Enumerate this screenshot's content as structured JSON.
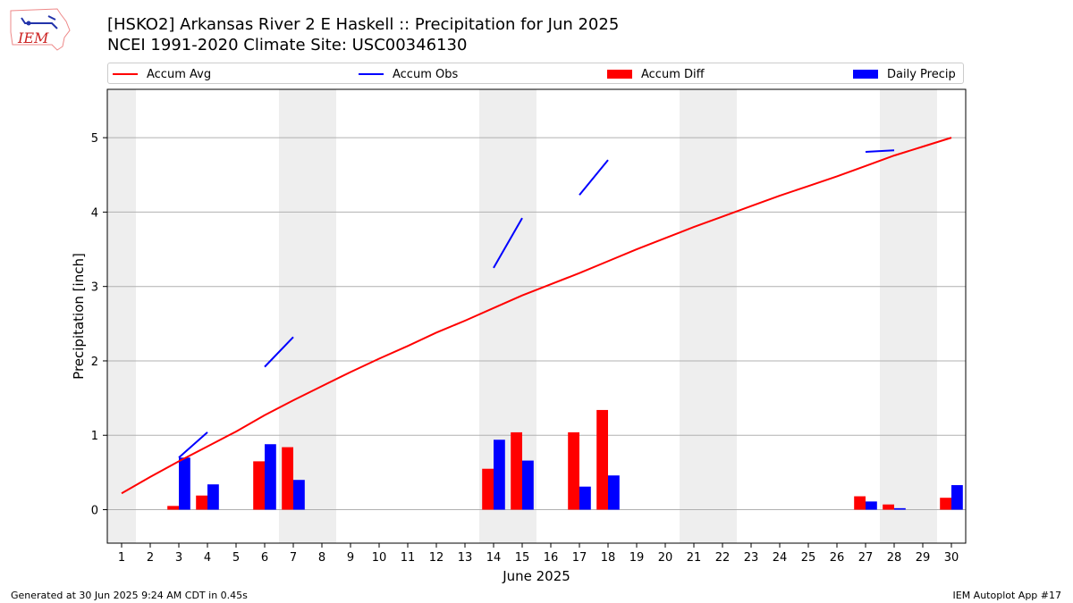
{
  "header": {
    "logo_text": "IEM",
    "title_line1": "[HSKO2] Arkansas River 2 E Haskell :: Precipitation for Jun 2025",
    "title_line2": "NCEI 1991-2020 Climate Site: USC00346130"
  },
  "legend": {
    "position": "top",
    "items": [
      {
        "label": "Accum Avg",
        "kind": "line",
        "color": "#ff0000"
      },
      {
        "label": "Accum Obs",
        "kind": "line",
        "color": "#0000ff"
      },
      {
        "label": "Accum Diff",
        "kind": "box",
        "color": "#ff0000"
      },
      {
        "label": "Daily Precip",
        "kind": "box",
        "color": "#0000ff"
      }
    ]
  },
  "footer": {
    "left": "Generated at 30 Jun 2025 9:24 AM CDT in 0.45s",
    "right": "IEM Autoplot App #17"
  },
  "chart_data": {
    "type": "bar",
    "xlabel": "June 2025",
    "ylabel": "Precipitation [inch]",
    "xlim": [
      0.5,
      30.5
    ],
    "ylim": [
      -0.45,
      5.65
    ],
    "yticks": [
      0,
      1,
      2,
      3,
      4,
      5
    ],
    "grid": "horizontal",
    "weekend_shading": [
      1,
      7,
      8,
      14,
      15,
      21,
      22,
      28,
      29
    ],
    "shade_color": "#eeeeee",
    "days": [
      1,
      2,
      3,
      4,
      5,
      6,
      7,
      8,
      9,
      10,
      11,
      12,
      13,
      14,
      15,
      16,
      17,
      18,
      19,
      20,
      21,
      22,
      23,
      24,
      25,
      26,
      27,
      28,
      29,
      30
    ],
    "accum_avg": [
      0.22,
      0.44,
      0.65,
      0.85,
      1.05,
      1.27,
      1.47,
      1.66,
      1.85,
      2.03,
      2.2,
      2.38,
      2.54,
      2.71,
      2.88,
      3.03,
      3.18,
      3.34,
      3.5,
      3.65,
      3.8,
      3.94,
      4.08,
      4.22,
      4.35,
      4.48,
      4.62,
      4.76,
      4.88,
      5.0
    ],
    "accum_obs_segments": [
      {
        "days": [
          3,
          4
        ],
        "values": [
          0.7,
          1.04
        ]
      },
      {
        "days": [
          6,
          7
        ],
        "values": [
          1.92,
          2.32
        ]
      },
      {
        "days": [
          14,
          15
        ],
        "values": [
          3.25,
          3.92
        ]
      },
      {
        "days": [
          17,
          18
        ],
        "values": [
          4.23,
          4.7
        ]
      },
      {
        "days": [
          27,
          28
        ],
        "values": [
          4.81,
          4.83
        ]
      }
    ],
    "accum_diff": [
      {
        "day": 3,
        "value": 0.05
      },
      {
        "day": 4,
        "value": 0.19
      },
      {
        "day": 6,
        "value": 0.65
      },
      {
        "day": 7,
        "value": 0.84
      },
      {
        "day": 14,
        "value": 0.55
      },
      {
        "day": 15,
        "value": 1.04
      },
      {
        "day": 17,
        "value": 1.04
      },
      {
        "day": 18,
        "value": 1.34
      },
      {
        "day": 27,
        "value": 0.18
      },
      {
        "day": 28,
        "value": 0.07
      },
      {
        "day": 30,
        "value": 0.16
      }
    ],
    "daily_precip": [
      {
        "day": 3,
        "value": 0.7
      },
      {
        "day": 4,
        "value": 0.34
      },
      {
        "day": 6,
        "value": 0.88
      },
      {
        "day": 7,
        "value": 0.4
      },
      {
        "day": 14,
        "value": 0.94
      },
      {
        "day": 15,
        "value": 0.66
      },
      {
        "day": 17,
        "value": 0.31
      },
      {
        "day": 18,
        "value": 0.46
      },
      {
        "day": 27,
        "value": 0.11
      },
      {
        "day": 28,
        "value": 0.02
      },
      {
        "day": 30,
        "value": 0.33
      }
    ]
  }
}
